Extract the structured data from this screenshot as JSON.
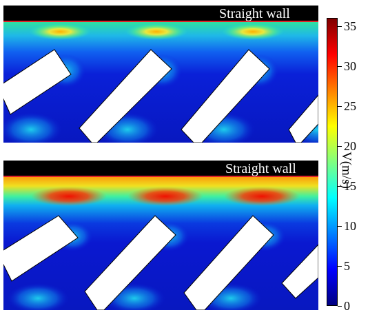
{
  "panels": [
    {
      "wall_label": "Straight wall",
      "peak_speed": 22
    },
    {
      "wall_label": "Straight wall",
      "peak_speed": 33
    }
  ],
  "colorbar": {
    "title": "V(m/s)",
    "min": 0,
    "max": 36,
    "ticks": [
      "0",
      "5",
      "10",
      "15",
      "20",
      "25",
      "30",
      "35"
    ],
    "tick_values": [
      0,
      5,
      10,
      15,
      20,
      25,
      30,
      35
    ],
    "colormap": [
      "#00007f",
      "#0000ff",
      "#0080ff",
      "#00ffff",
      "#80ff80",
      "#ffff00",
      "#ff8000",
      "#ff0000",
      "#7f0000"
    ]
  },
  "colors": {
    "wall": "#000000",
    "wall_edge": "#e0222a",
    "rib": "#ffffff",
    "background_flow": "#0a12c8"
  }
}
